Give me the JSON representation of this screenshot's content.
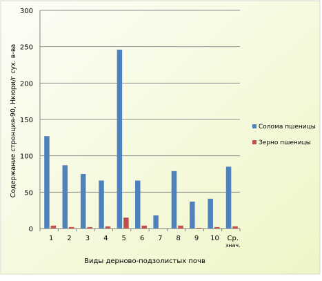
{
  "chart_data": {
    "type": "bar",
    "title": "",
    "xlabel": "Виды дерново-подзолистых почв",
    "ylabel": "Содержание стронция-90, Нкюри/г сух. в-ва",
    "categories": [
      "1",
      "2",
      "3",
      "4",
      "5",
      "6",
      "7",
      "8",
      "9",
      "10",
      "Ср. знач."
    ],
    "ylim": [
      0,
      300
    ],
    "yticks": [
      "0",
      "50",
      "100",
      "150",
      "200",
      "250",
      "300"
    ],
    "grid": true,
    "legend_position": "right",
    "series": [
      {
        "name": "Солома пшеницы",
        "color": "#4f81bd",
        "values": [
          127,
          87,
          75,
          66,
          246,
          66,
          18,
          79,
          37,
          41,
          85
        ]
      },
      {
        "name": "Зерно пшеницы",
        "color": "#c0504d",
        "values": [
          4,
          2,
          2,
          3,
          15,
          4,
          0,
          4,
          1,
          2,
          3
        ]
      }
    ],
    "colors": {
      "background_gradient_start": "#fdfdf7",
      "background_gradient_end": "#eef6c7",
      "gridline": "#8c8c8c",
      "axis": "#808080"
    }
  }
}
